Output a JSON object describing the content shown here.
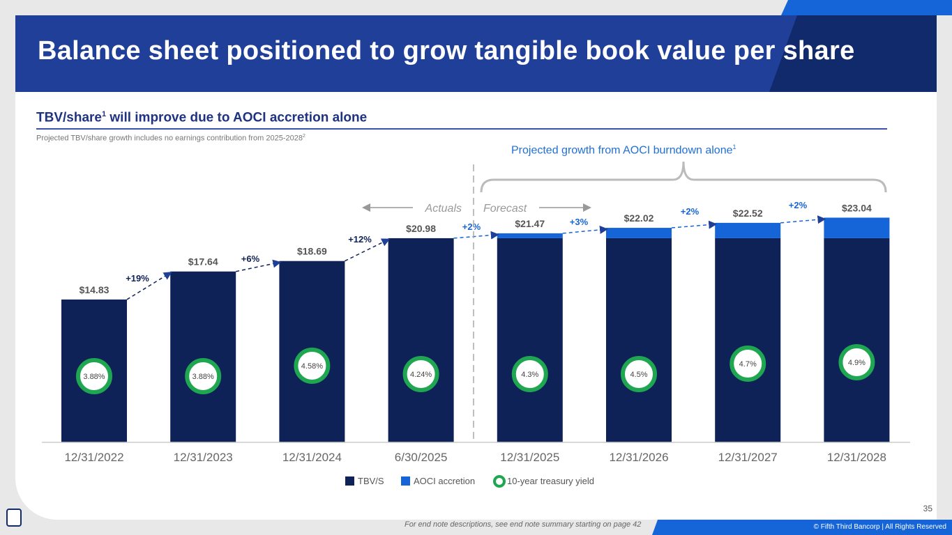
{
  "title": "Balance sheet positioned to grow tangible book value per share",
  "subtitle": "TBV/share",
  "subtitle_sup": "1",
  "subtitle_rest": " will improve due to AOCI accretion alone",
  "note": "Projected TBV/share growth includes no earnings contribution from 2025-2028",
  "note_sup": "2",
  "projected_label": "Projected growth from AOCI burndown alone",
  "projected_sup": "1",
  "page_number": "35",
  "endnote": "For end note descriptions, see end note summary starting on page 42",
  "copyright": "© Fifth Third Bancorp | All Rights Reserved",
  "logo_text": "5/3",
  "colors": {
    "tbvs": "#0f2257",
    "aoci": "#1565d8",
    "yield": "#1ea650",
    "growth": "#1f3f99"
  },
  "chart_data": {
    "type": "bar",
    "stacked": true,
    "categories": [
      "12/31/2022",
      "12/31/2023",
      "12/31/2024",
      "6/30/2025",
      "12/31/2025",
      "12/31/2026",
      "12/31/2027",
      "12/31/2028"
    ],
    "series": [
      {
        "name": "TBV/S",
        "values": [
          14.83,
          17.64,
          18.69,
          20.98,
          20.98,
          20.98,
          20.98,
          20.98
        ]
      },
      {
        "name": "AOCI accretion",
        "values": [
          0,
          0,
          0,
          0,
          0.49,
          1.04,
          1.54,
          2.06
        ]
      }
    ],
    "totals": [
      "$14.83",
      "$17.64",
      "$18.69",
      "$20.98",
      "$21.47",
      "$22.02",
      "$22.52",
      "$23.04"
    ],
    "growth": [
      "+19%",
      "+6%",
      "+12%",
      "+2%",
      "+3%",
      "+2%",
      "+2%"
    ],
    "treasury_yield_label": "10-year treasury yield",
    "treasury_yield": [
      "3.88%",
      "3.88%",
      "4.58%",
      "4.24%",
      "4.3%",
      "4.5%",
      "4.7%",
      "4.9%"
    ],
    "actuals_label": "Actuals",
    "forecast_label": "Forecast",
    "legend": [
      "TBV/S",
      "AOCI accretion",
      "10-year treasury yield"
    ],
    "legend_placement": "bottom-center"
  }
}
